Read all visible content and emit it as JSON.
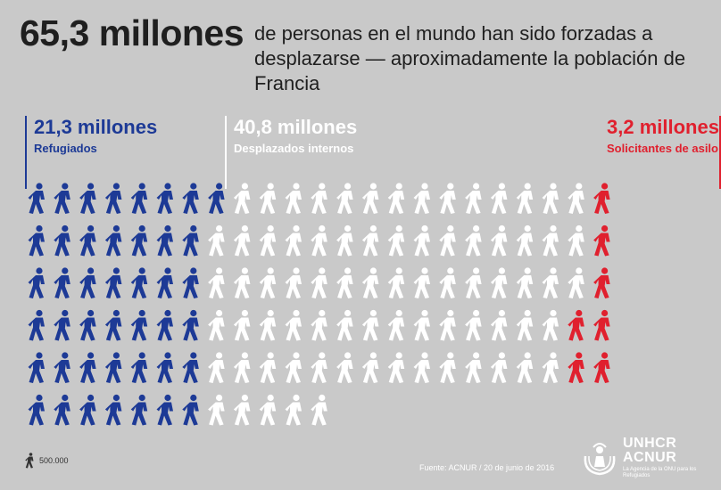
{
  "headline": {
    "number": "65,3 millones",
    "text": "de personas en el mundo han sido forzadas a desplazarse — aproximadamente la población de Francia"
  },
  "groups": [
    {
      "amount": "21,3 millones",
      "label": "Refugiados",
      "color": "#1d3a96"
    },
    {
      "amount": "40,8 millones",
      "label": "Desplazados internos",
      "color": "#ffffff"
    },
    {
      "amount": "3,2 millones",
      "label": "Solicitantes de asilo",
      "color": "#e0202e"
    }
  ],
  "colors": {
    "background": "#c9c9c9",
    "refugees": "#1d3a96",
    "idp": "#ffffff",
    "asylum": "#e0202e",
    "partial": "#8a8a8a"
  },
  "chart_data": {
    "type": "pictogram",
    "unit_per_icon": 500000,
    "series": [
      {
        "name": "Refugiados",
        "value_millions": 21.3
      },
      {
        "name": "Desplazados internos",
        "value_millions": 40.8
      },
      {
        "name": "Solicitantes de asilo",
        "value_millions": 3.2
      }
    ],
    "total_millions": 65.3
  },
  "legend": {
    "icon": "walking-person-icon",
    "value": "500.000"
  },
  "source": "Fuente: ACNUR / 20 de junio de 2016",
  "logo": {
    "name": "UNHCR",
    "name2": "ACNUR",
    "subtitle": "La Agencia de la ONU para los Refugiados"
  }
}
